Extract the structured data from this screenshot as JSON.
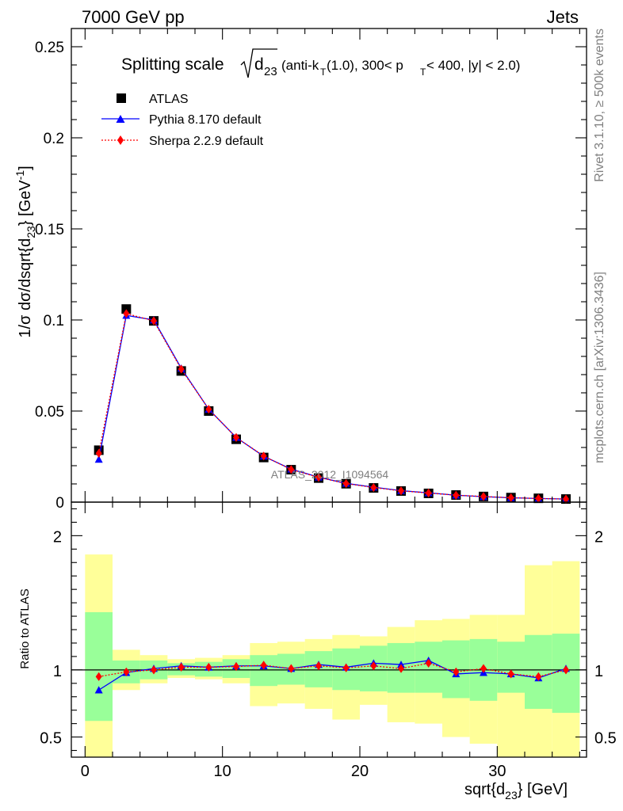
{
  "header": {
    "left": "7000 GeV pp",
    "right": "Jets"
  },
  "side_labels": {
    "rivet": "Rivet 3.1.10, ≥ 500k events",
    "mcplots": "mcplots.cern.ch [arXiv:1306.3436]"
  },
  "title": {
    "main": "Splitting scale",
    "sqrt_arg": "d",
    "sqrt_sub": "23",
    "cuts_a": "(anti-k",
    "cuts_a_sub": "T",
    "cuts_b": "(1.0), 300< p",
    "cuts_b_sub": "T",
    "cuts_c": " < 400, |y| < 2.0)"
  },
  "watermark": "ATLAS_2012_I1094564",
  "axes": {
    "ylabel_top": "1/σ dσ/dsqrt{d",
    "ylabel_top_sub": "23",
    "ylabel_top_tail": "} [GeV",
    "ylabel_top_sup": "-1",
    "ylabel_top_end": "]",
    "ylabel_bottom": "Ratio to ATLAS",
    "xlabel": "sqrt{d",
    "xlabel_sub": "23",
    "xlabel_tail": "} [GeV]"
  },
  "legend": [
    {
      "label": "ATLAS",
      "color": "#000000",
      "marker": "square"
    },
    {
      "label": "Pythia 8.170 default",
      "color": "#0000ff",
      "marker": "triangle"
    },
    {
      "label": "Sherpa 2.2.9 default",
      "color": "#ff0000",
      "marker": "diamond"
    }
  ],
  "chart_data": [
    {
      "type": "line",
      "panel": "main",
      "xlim": [
        -1,
        36.5
      ],
      "ylim": [
        0,
        0.26
      ],
      "yticks": [
        0,
        0.05,
        0.1,
        0.15,
        0.2,
        0.25
      ],
      "ytick_labels": [
        "0",
        "0.05",
        "0.1",
        "0.15",
        "0.2",
        "0.25"
      ],
      "x": [
        1,
        3,
        5,
        7,
        9,
        11,
        13,
        15,
        17,
        19,
        21,
        23,
        25,
        27,
        29,
        31,
        33,
        35
      ],
      "series": [
        {
          "name": "ATLAS",
          "color": "#000000",
          "values": [
            0.0285,
            0.106,
            0.0995,
            0.072,
            0.05,
            0.0345,
            0.0245,
            0.0178,
            0.0132,
            0.0101,
            0.0078,
            0.0061,
            0.0048,
            0.0039,
            0.0031,
            0.0025,
            0.0021,
            0.0017
          ]
        },
        {
          "name": "Pythia 8.170 default",
          "color": "#0000ff",
          "values": [
            0.0235,
            0.1025,
            0.1,
            0.0735,
            0.051,
            0.0355,
            0.0252,
            0.0181,
            0.0137,
            0.0103,
            0.0082,
            0.0063,
            0.0051,
            0.0038,
            0.003,
            0.0024,
            0.002,
            0.0017
          ]
        },
        {
          "name": "Sherpa 2.2.9 default",
          "color": "#ff0000",
          "values": [
            0.0268,
            0.1035,
            0.0995,
            0.073,
            0.051,
            0.0355,
            0.0253,
            0.0179,
            0.0136,
            0.0102,
            0.008,
            0.0062,
            0.005,
            0.0038,
            0.0031,
            0.0024,
            0.002,
            0.0017
          ]
        }
      ]
    },
    {
      "type": "line",
      "panel": "ratio",
      "xlim": [
        -1,
        36.5
      ],
      "ylim": [
        0.35,
        2.25
      ],
      "yticks": [
        0.5,
        1,
        2
      ],
      "ytick_labels": [
        "0.5",
        "1",
        "2"
      ],
      "xticks": [
        0,
        10,
        20,
        30
      ],
      "xtick_labels": [
        "0",
        "10",
        "20",
        "30"
      ],
      "bins": [
        [
          0,
          2
        ],
        [
          2,
          4
        ],
        [
          4,
          6
        ],
        [
          6,
          8
        ],
        [
          8,
          10
        ],
        [
          10,
          12
        ],
        [
          12,
          14
        ],
        [
          14,
          16
        ],
        [
          16,
          18
        ],
        [
          18,
          20
        ],
        [
          20,
          22
        ],
        [
          22,
          24
        ],
        [
          24,
          26
        ],
        [
          26,
          28
        ],
        [
          28,
          30
        ],
        [
          30,
          32
        ],
        [
          32,
          34
        ],
        [
          34,
          36
        ]
      ],
      "band_stat": [
        [
          0.62,
          1.43
        ],
        [
          0.9,
          1.07
        ],
        [
          0.93,
          1.07
        ],
        [
          0.96,
          1.05
        ],
        [
          0.95,
          1.06
        ],
        [
          0.94,
          1.08
        ],
        [
          0.88,
          1.11
        ],
        [
          0.89,
          1.12
        ],
        [
          0.87,
          1.14
        ],
        [
          0.85,
          1.16
        ],
        [
          0.84,
          1.18
        ],
        [
          0.83,
          1.2
        ],
        [
          0.83,
          1.21
        ],
        [
          0.79,
          1.22
        ],
        [
          0.77,
          1.23
        ],
        [
          0.83,
          1.21
        ],
        [
          0.71,
          1.26
        ],
        [
          0.68,
          1.27
        ]
      ],
      "band_total": [
        [
          0.35,
          1.86
        ],
        [
          0.85,
          1.15
        ],
        [
          0.9,
          1.11
        ],
        [
          0.94,
          1.08
        ],
        [
          0.93,
          1.09
        ],
        [
          0.9,
          1.11
        ],
        [
          0.73,
          1.2
        ],
        [
          0.75,
          1.21
        ],
        [
          0.71,
          1.23
        ],
        [
          0.63,
          1.26
        ],
        [
          0.74,
          1.25
        ],
        [
          0.61,
          1.32
        ],
        [
          0.6,
          1.37
        ],
        [
          0.5,
          1.38
        ],
        [
          0.45,
          1.41
        ],
        [
          0.35,
          1.41
        ],
        [
          0.35,
          1.78
        ],
        [
          0.35,
          1.81
        ]
      ],
      "band_colors": {
        "total": "#ffff99",
        "stat": "#99ff99"
      },
      "x": [
        1,
        3,
        5,
        7,
        9,
        11,
        13,
        15,
        17,
        19,
        21,
        23,
        25,
        27,
        29,
        31,
        33,
        35
      ],
      "series": [
        {
          "name": "Pythia 8.170 default",
          "color": "#0000ff",
          "values": [
            0.85,
            0.98,
            1.01,
            1.03,
            1.02,
            1.03,
            1.03,
            1.01,
            1.04,
            1.02,
            1.05,
            1.04,
            1.07,
            0.97,
            0.98,
            0.97,
            0.94,
            1.01
          ]
        },
        {
          "name": "Sherpa 2.2.9 default",
          "color": "#ff0000",
          "values": [
            0.95,
            0.985,
            1.0,
            1.02,
            1.02,
            1.025,
            1.035,
            1.01,
            1.03,
            1.015,
            1.03,
            1.01,
            1.05,
            0.985,
            1.01,
            0.97,
            0.95,
            1.0
          ]
        }
      ]
    }
  ]
}
